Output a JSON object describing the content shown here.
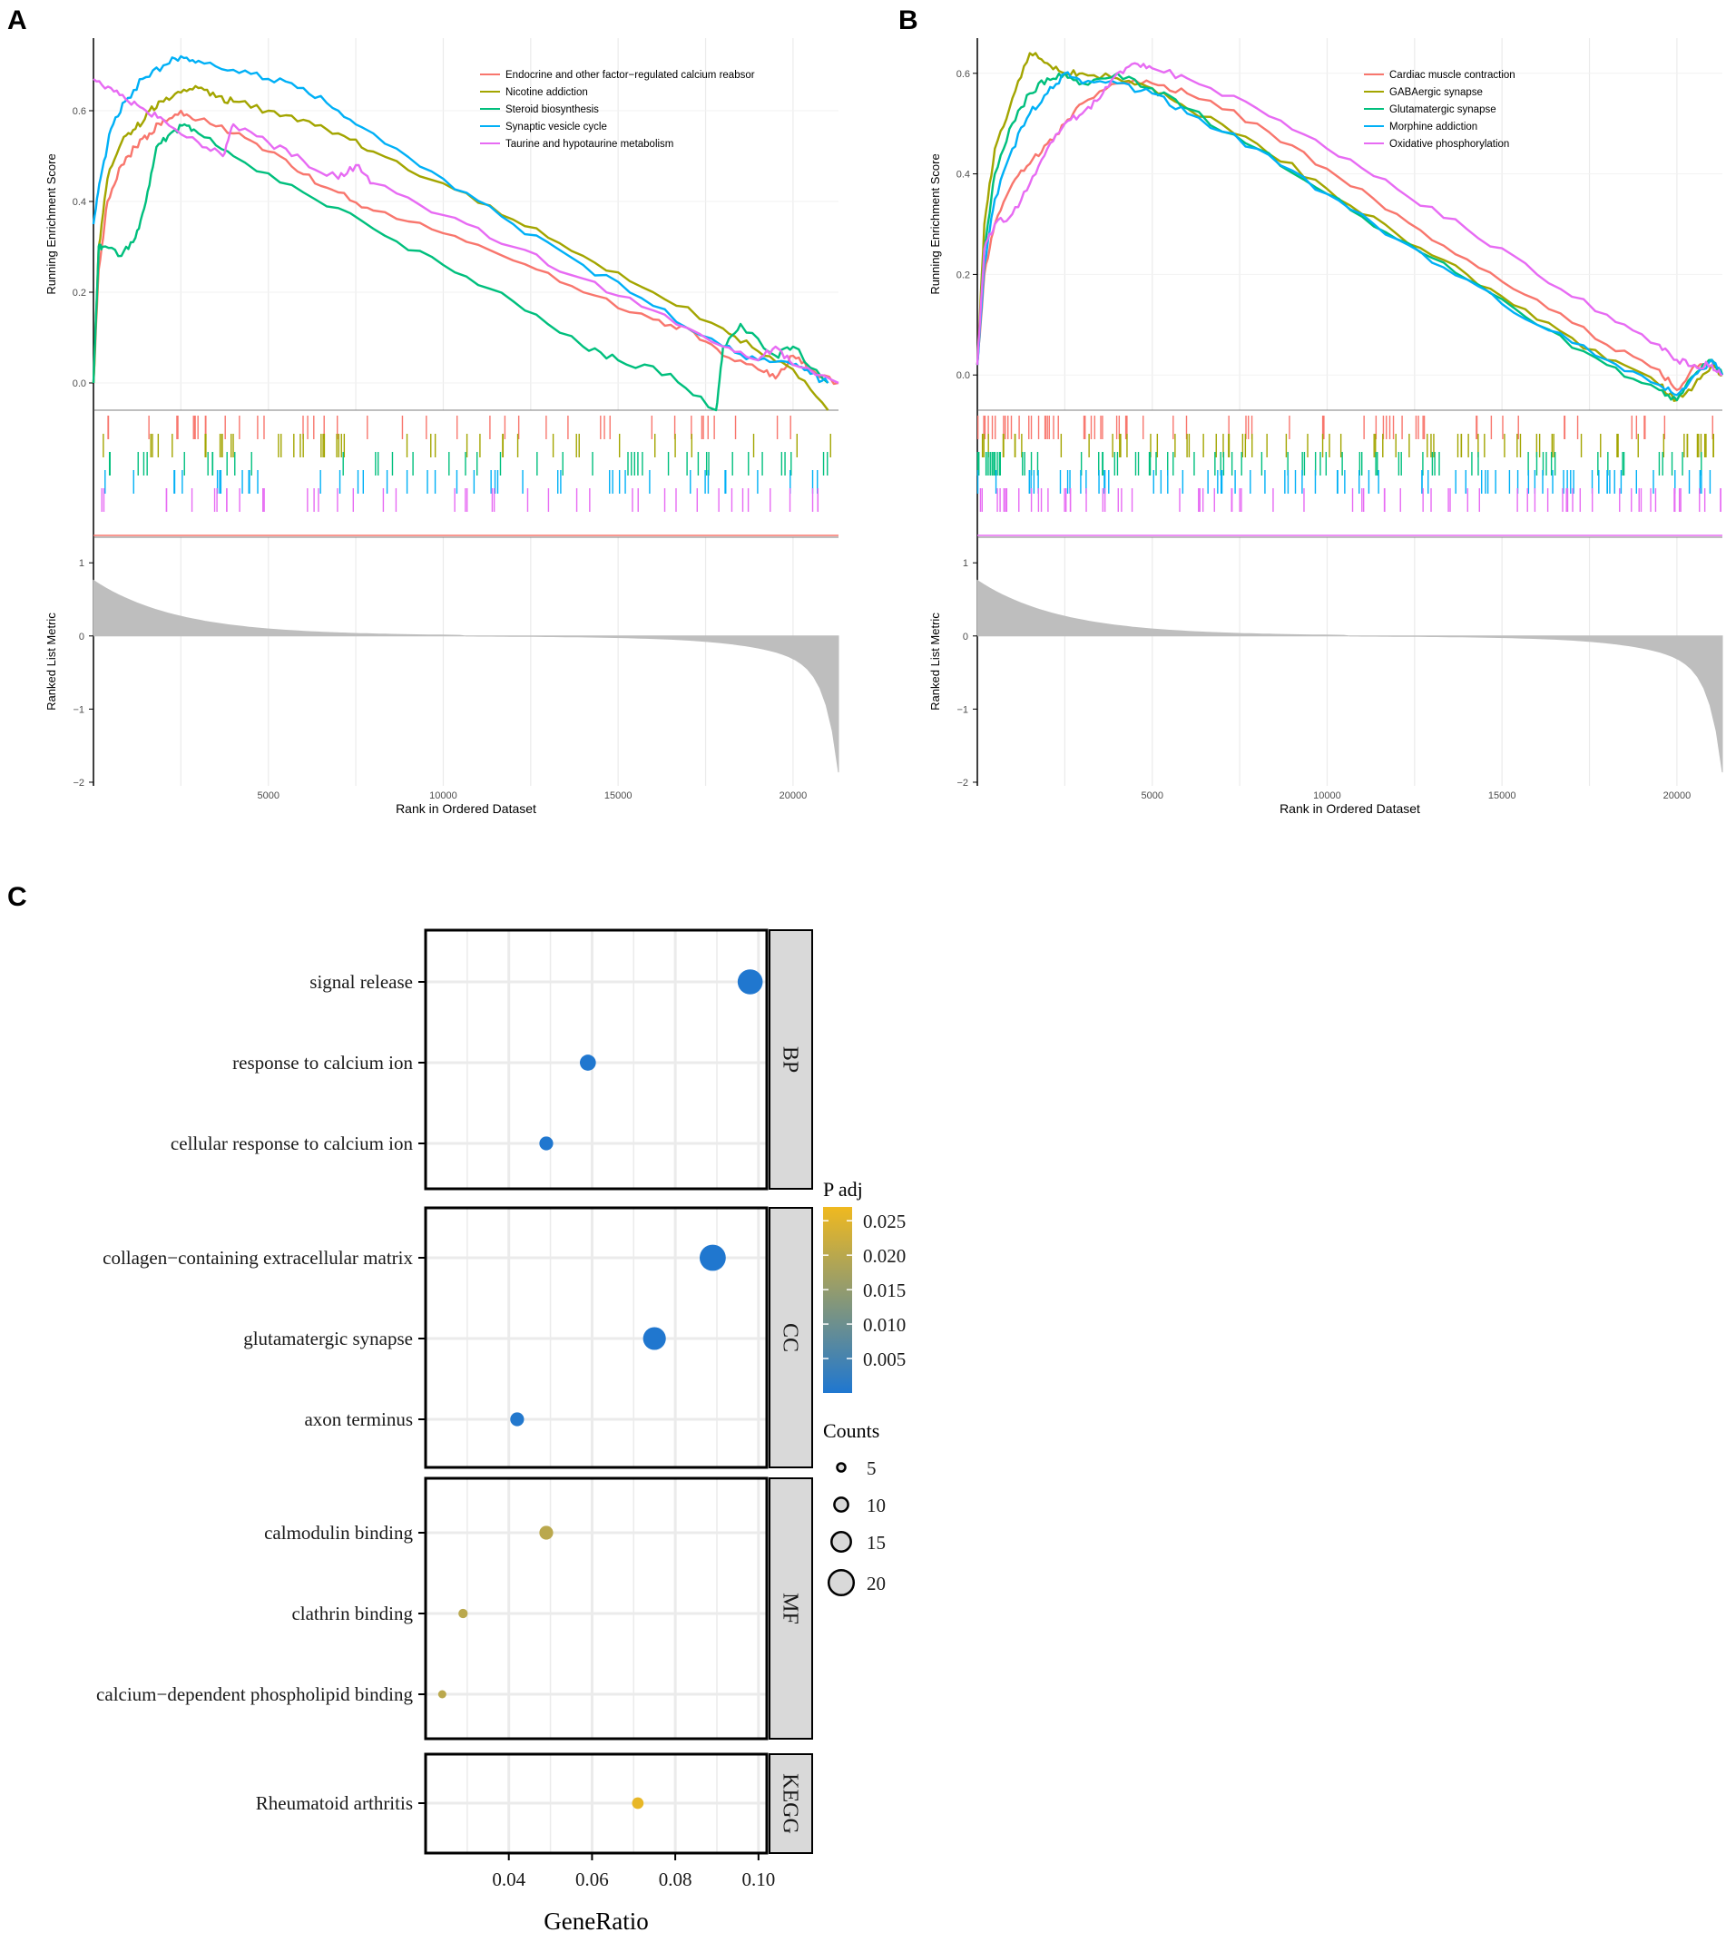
{
  "panels": {
    "a": "A",
    "b": "B",
    "c": "C"
  },
  "chart_data": [
    {
      "id": "A",
      "type": "line",
      "title": "",
      "xlabel": "Rank in Ordered Dataset",
      "ylabel_top": "Running Enrichment Score",
      "ylabel_bottom": "Ranked List Metric",
      "xlim": [
        0,
        21300
      ],
      "xticks": [
        "5000",
        "10000",
        "15000",
        "20000"
      ],
      "es_ylim": [
        -0.06,
        0.76
      ],
      "es_yticks": [
        "0.0",
        "0.2",
        "0.4",
        "0.6"
      ],
      "metric_ylim": [
        -2.05,
        1.35
      ],
      "metric_yticks": [
        "1",
        "0",
        "−1",
        "−2"
      ],
      "legend_position": "top-right",
      "series": [
        {
          "name": "Endocrine and other factor−regulated calcium reabsor",
          "color": "#F8766D",
          "x": [
            0,
            150,
            400,
            800,
            1200,
            1600,
            2000,
            2500,
            3000,
            4000,
            5000,
            6000,
            7000,
            8000,
            10000,
            12000,
            14000,
            16000,
            17000,
            18000,
            19000,
            19500,
            20000,
            20500,
            21300
          ],
          "y": [
            0,
            0.25,
            0.4,
            0.48,
            0.52,
            0.55,
            0.58,
            0.6,
            0.58,
            0.55,
            0.51,
            0.46,
            0.42,
            0.38,
            0.33,
            0.27,
            0.2,
            0.14,
            0.12,
            0.06,
            0.03,
            0.01,
            0.06,
            0.03,
            0.0
          ]
        },
        {
          "name": "Nicotine addiction",
          "color": "#A3A500",
          "x": [
            0,
            150,
            400,
            800,
            1200,
            1600,
            2000,
            2500,
            3000,
            3500,
            4000,
            5000,
            6000,
            7000,
            8000,
            10000,
            12000,
            14000,
            16000,
            18000,
            19000,
            20000,
            21000
          ],
          "y": [
            0,
            0.3,
            0.45,
            0.53,
            0.56,
            0.6,
            0.62,
            0.64,
            0.65,
            0.63,
            0.62,
            0.6,
            0.58,
            0.55,
            0.51,
            0.44,
            0.36,
            0.28,
            0.2,
            0.12,
            0.07,
            0.03,
            -0.06
          ]
        },
        {
          "name": "Steroid biosynthesis",
          "color": "#00BF7D",
          "x": [
            0,
            150,
            250,
            800,
            1200,
            1500,
            1800,
            2200,
            2600,
            3000,
            4000,
            6000,
            8000,
            10000,
            12000,
            14000,
            15000,
            16500,
            17800,
            18000,
            18500,
            19500,
            20000,
            21000
          ],
          "y": [
            0,
            0.3,
            0.3,
            0.28,
            0.32,
            0.4,
            0.52,
            0.55,
            0.57,
            0.55,
            0.5,
            0.42,
            0.34,
            0.26,
            0.18,
            0.08,
            0.05,
            0.02,
            -0.06,
            0.08,
            0.13,
            0.06,
            0.08,
            0.0
          ]
        },
        {
          "name": "Synaptic vesicle cycle",
          "color": "#00B0F6",
          "x": [
            0,
            200,
            500,
            900,
            1400,
            2000,
            2500,
            3000,
            4000,
            5000,
            6000,
            7000,
            8000,
            10000,
            12000,
            14000,
            16000,
            18000,
            19000,
            20000,
            20500,
            21000
          ],
          "y": [
            0.35,
            0.45,
            0.56,
            0.62,
            0.67,
            0.7,
            0.72,
            0.71,
            0.69,
            0.67,
            0.65,
            0.6,
            0.55,
            0.45,
            0.35,
            0.26,
            0.17,
            0.08,
            0.05,
            0.04,
            0.02,
            0.0
          ]
        },
        {
          "name": "Taurine and hypotaurine metabolism",
          "color": "#E76BF3",
          "x": [
            0,
            500,
            1000,
            1500,
            2000,
            3000,
            3700,
            4000,
            5000,
            6000,
            7000,
            7500,
            8000,
            10000,
            12000,
            14000,
            16000,
            18000,
            19000,
            19500,
            20000,
            21300
          ],
          "y": [
            0.67,
            0.65,
            0.62,
            0.6,
            0.58,
            0.53,
            0.5,
            0.57,
            0.53,
            0.49,
            0.45,
            0.48,
            0.44,
            0.37,
            0.3,
            0.23,
            0.16,
            0.08,
            0.05,
            0.08,
            0.04,
            0.0
          ]
        }
      ]
    },
    {
      "id": "B",
      "type": "line",
      "title": "",
      "xlabel": "Rank in Ordered Dataset",
      "ylabel_top": "Running Enrichment Score",
      "ylabel_bottom": "Ranked List Metric",
      "xlim": [
        0,
        21300
      ],
      "xticks": [
        "5000",
        "10000",
        "15000",
        "20000"
      ],
      "es_ylim": [
        -0.07,
        0.67
      ],
      "es_yticks": [
        "0.0",
        "0.2",
        "0.4",
        "0.6"
      ],
      "metric_ylim": [
        -2.05,
        1.35
      ],
      "metric_yticks": [
        "1",
        "0",
        "−1",
        "−2"
      ],
      "legend_position": "top-right",
      "series": [
        {
          "name": "Cardiac muscle contraction",
          "color": "#F8766D",
          "x": [
            0,
            200,
            500,
            1000,
            1500,
            2000,
            2500,
            3000,
            4000,
            5000,
            6000,
            8000,
            10000,
            12000,
            14000,
            16000,
            18000,
            19500,
            20000,
            20500,
            21000,
            21300
          ],
          "y": [
            0.02,
            0.2,
            0.3,
            0.38,
            0.42,
            0.46,
            0.5,
            0.54,
            0.58,
            0.58,
            0.56,
            0.5,
            0.41,
            0.32,
            0.23,
            0.15,
            0.06,
            0.01,
            -0.03,
            0.02,
            0.03,
            0.0
          ]
        },
        {
          "name": "GABAergic synapse",
          "color": "#A3A500",
          "x": [
            0,
            200,
            500,
            1000,
            1500,
            2000,
            2500,
            3000,
            4000,
            5000,
            6000,
            8000,
            10000,
            12000,
            14000,
            16000,
            18000,
            19500,
            20000,
            20500,
            21000,
            21300
          ],
          "y": [
            0.02,
            0.3,
            0.45,
            0.55,
            0.64,
            0.62,
            0.6,
            0.6,
            0.59,
            0.57,
            0.53,
            0.46,
            0.37,
            0.28,
            0.2,
            0.11,
            0.03,
            -0.02,
            -0.05,
            -0.02,
            0.02,
            0.0
          ]
        },
        {
          "name": "Glutamatergic synapse",
          "color": "#00BF7D",
          "x": [
            0,
            200,
            500,
            1000,
            1500,
            2000,
            2500,
            3000,
            4000,
            5000,
            6000,
            8000,
            10000,
            12000,
            14000,
            16000,
            18000,
            19500,
            20000,
            20500,
            21000,
            21300
          ],
          "y": [
            0.02,
            0.25,
            0.4,
            0.5,
            0.56,
            0.59,
            0.6,
            0.58,
            0.6,
            0.57,
            0.53,
            0.45,
            0.36,
            0.27,
            0.19,
            0.1,
            0.02,
            -0.03,
            -0.05,
            0.0,
            0.03,
            0.0
          ]
        },
        {
          "name": "Morphine addiction",
          "color": "#00B0F6",
          "x": [
            0,
            200,
            500,
            1000,
            1500,
            2000,
            2500,
            3000,
            4000,
            5000,
            6000,
            8000,
            10000,
            12000,
            14000,
            16000,
            18000,
            19500,
            20000,
            20500,
            21000,
            21300
          ],
          "y": [
            0.02,
            0.22,
            0.35,
            0.45,
            0.52,
            0.56,
            0.6,
            0.58,
            0.58,
            0.56,
            0.52,
            0.45,
            0.36,
            0.27,
            0.19,
            0.1,
            0.03,
            -0.02,
            -0.04,
            0.0,
            0.03,
            0.0
          ]
        },
        {
          "name": "Oxidative phosphorylation",
          "color": "#E76BF3",
          "x": [
            0,
            200,
            500,
            1000,
            1500,
            2000,
            2500,
            3000,
            3500,
            4000,
            4500,
            5000,
            6000,
            8000,
            10000,
            12000,
            14000,
            16000,
            18000,
            19500,
            20000,
            20500,
            21000,
            21300
          ],
          "y": [
            0.02,
            0.25,
            0.3,
            0.32,
            0.38,
            0.45,
            0.5,
            0.52,
            0.55,
            0.6,
            0.62,
            0.61,
            0.59,
            0.53,
            0.45,
            0.37,
            0.29,
            0.2,
            0.12,
            0.06,
            0.03,
            0.02,
            0.02,
            0.0
          ]
        }
      ]
    },
    {
      "id": "C",
      "type": "scatter",
      "title": "",
      "xlabel": "GeneRatio",
      "xlim": [
        0.02,
        0.102
      ],
      "xticks": [
        0.04,
        0.06,
        0.08,
        0.1
      ],
      "xtick_labels": [
        "0.04",
        "0.06",
        "0.08",
        "0.10"
      ],
      "color_legend_title": "P adj",
      "color_scale": [
        "#1F77D0",
        "#F0B91F"
      ],
      "color_range": [
        0.0,
        0.027
      ],
      "color_ticks": [
        "0.025",
        "0.020",
        "0.015",
        "0.010",
        "0.005"
      ],
      "color_tick_values": [
        0.025,
        0.02,
        0.015,
        0.01,
        0.005
      ],
      "size_legend_title": "Counts",
      "size_ticks": [
        "5",
        "10",
        "15",
        "20"
      ],
      "size_tick_values": [
        5,
        10,
        15,
        20
      ],
      "facets": [
        {
          "name": "BP",
          "terms": [
            {
              "term": "signal release",
              "gene_ratio": 0.098,
              "count": 20,
              "p_adj": 0.0001
            },
            {
              "term": "response to calcium ion",
              "gene_ratio": 0.059,
              "count": 12,
              "p_adj": 0.0001
            },
            {
              "term": "cellular response to calcium ion",
              "gene_ratio": 0.049,
              "count": 10,
              "p_adj": 0.0001
            }
          ]
        },
        {
          "name": "CC",
          "terms": [
            {
              "term": "collagen−containing extracellular matrix",
              "gene_ratio": 0.089,
              "count": 21,
              "p_adj": 0.0001
            },
            {
              "term": "glutamatergic synapse",
              "gene_ratio": 0.075,
              "count": 18,
              "p_adj": 0.0001
            },
            {
              "term": "axon terminus",
              "gene_ratio": 0.042,
              "count": 10,
              "p_adj": 0.0005
            }
          ]
        },
        {
          "name": "MF",
          "terms": [
            {
              "term": "calmodulin binding",
              "gene_ratio": 0.049,
              "count": 10,
              "p_adj": 0.02
            },
            {
              "term": "clathrin binding",
              "gene_ratio": 0.029,
              "count": 6,
              "p_adj": 0.02
            },
            {
              "term": "calcium−dependent phospholipid binding",
              "gene_ratio": 0.024,
              "count": 5,
              "p_adj": 0.02
            }
          ]
        },
        {
          "name": "KEGG",
          "terms": [
            {
              "term": "Rheumatoid arthritis",
              "gene_ratio": 0.071,
              "count": 8,
              "p_adj": 0.026
            }
          ]
        }
      ]
    }
  ]
}
